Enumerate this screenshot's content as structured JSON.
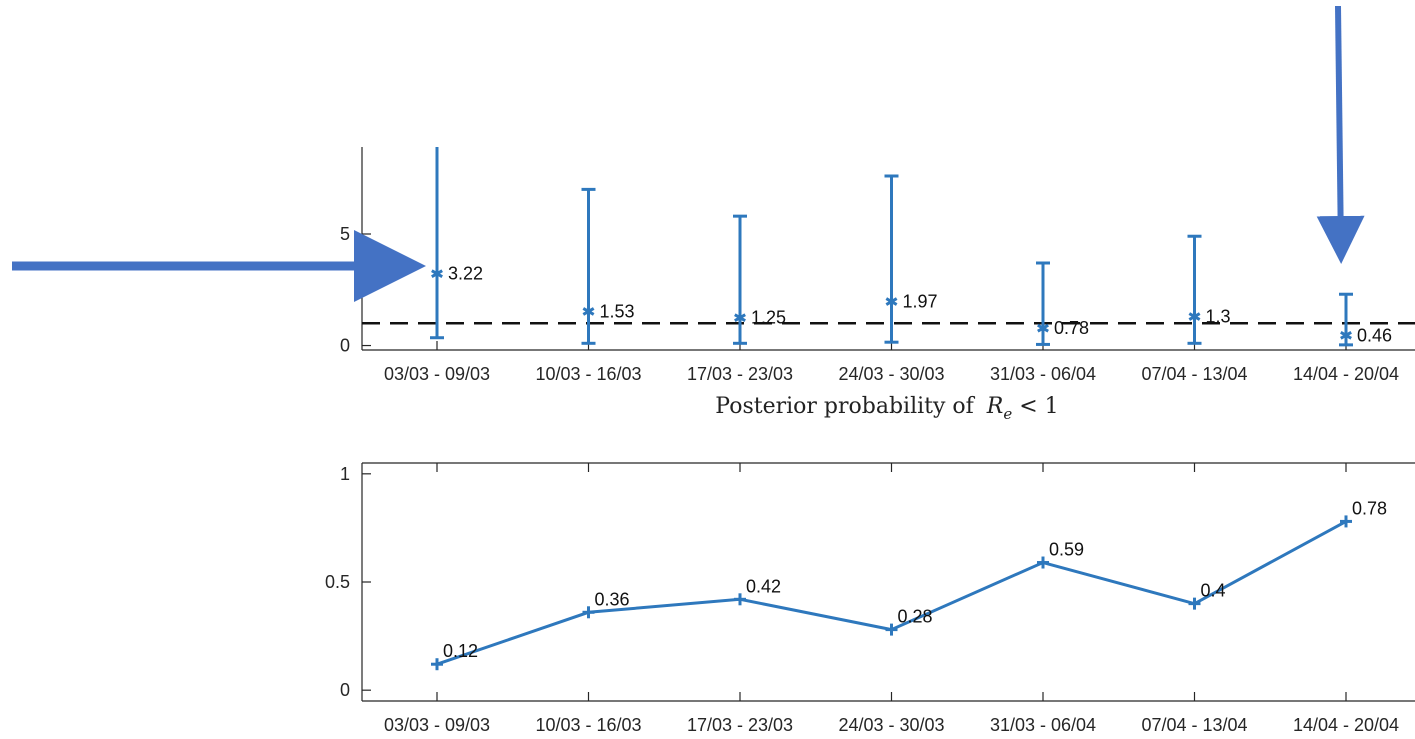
{
  "chart_data": [
    {
      "type": "errorbar",
      "title": "",
      "categories": [
        "03/03 - 09/03",
        "10/03 - 16/03",
        "17/03 - 23/03",
        "24/03 - 30/03",
        "31/03 - 06/04",
        "07/04 - 13/04",
        "14/04 - 20/04"
      ],
      "values": [
        3.22,
        1.53,
        1.25,
        1.97,
        0.78,
        1.3,
        0.46
      ],
      "value_labels": [
        "3.22",
        "1.53",
        "1.25",
        "1.97",
        "0.78",
        "1.3",
        "0.46"
      ],
      "lower": [
        0.35,
        0.1,
        0.1,
        0.15,
        0.05,
        0.1,
        0.03
      ],
      "upper": [
        8.9,
        7.0,
        5.8,
        7.6,
        3.7,
        4.9,
        2.3
      ],
      "ylim": [
        -0.2,
        8.9
      ],
      "yticks": [
        0,
        5
      ],
      "ytick_labels": [
        "0",
        "5"
      ],
      "reference_line": 1,
      "grid": false,
      "color": "#2e78bd"
    },
    {
      "type": "line",
      "title": "Posterior probability of",
      "title_math": "R",
      "title_math_sub": "e",
      "title_math_tail": " < 1",
      "categories": [
        "03/03 - 09/03",
        "10/03 - 16/03",
        "17/03 - 23/03",
        "24/03 - 30/03",
        "31/03 - 06/04",
        "07/04 - 13/04",
        "14/04 - 20/04"
      ],
      "values": [
        0.12,
        0.36,
        0.42,
        0.28,
        0.59,
        0.4,
        0.78
      ],
      "value_labels": [
        "0.12",
        "0.36",
        "0.42",
        "0.28",
        "0.59",
        "0.4",
        "0.78"
      ],
      "ylim": [
        -0.05,
        1.05
      ],
      "yticks": [
        0,
        0.5,
        1
      ],
      "ytick_labels": [
        "0",
        "0.5",
        "1"
      ],
      "grid": false,
      "color": "#2e78bd"
    }
  ],
  "annotations": {
    "arrow_color": "#4472c4"
  }
}
